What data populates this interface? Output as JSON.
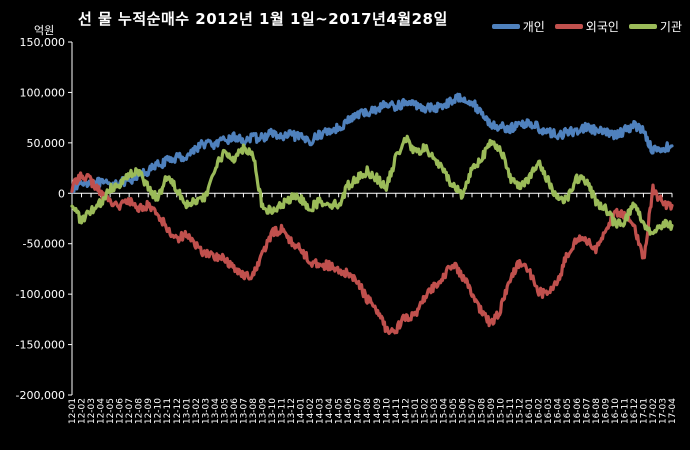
{
  "chart_data": {
    "type": "line",
    "title": "선 물 누적순매수 2012년 1월 1일~2017년4월28일",
    "unit_label": "억원",
    "xlabel": "",
    "ylabel": "",
    "ylim": [
      -200000,
      150000
    ],
    "yticks": [
      150000,
      100000,
      50000,
      0,
      -50000,
      -100000,
      -150000,
      -200000
    ],
    "ytick_labels": [
      "150,000",
      "100,000",
      "50,000",
      "0",
      "-50,000",
      "-100,000",
      "-150,000",
      "-200,000"
    ],
    "legend_position": "top-right",
    "grid": false,
    "colors": {
      "개인": "#4f81bd",
      "외국인": "#c0504d",
      "기관": "#9bbb59",
      "background": "#000000"
    },
    "x": [
      "12-01",
      "12-02",
      "12-03",
      "12-04",
      "12-05",
      "12-06",
      "12-07",
      "12-08",
      "12-09",
      "12-10",
      "12-11",
      "12-12",
      "13-01",
      "13-02",
      "13-03",
      "13-04",
      "13-05",
      "13-06",
      "13-07",
      "13-08",
      "13-09",
      "13-10",
      "13-11",
      "13-12",
      "14-01",
      "14-02",
      "14-03",
      "14-04",
      "14-05",
      "14-06",
      "14-07",
      "14-08",
      "14-09",
      "14-10",
      "14-11",
      "14-12",
      "15-01",
      "15-02",
      "15-03",
      "15-04",
      "15-05",
      "15-06",
      "15-07",
      "15-08",
      "15-09",
      "15-10",
      "15-11",
      "15-12",
      "16-01",
      "16-02",
      "16-03",
      "16-04",
      "16-05",
      "16-06",
      "16-07",
      "16-08",
      "16-09",
      "16-10",
      "16-11",
      "16-12",
      "17-01",
      "17-02",
      "17-03",
      "17-04"
    ],
    "series": [
      {
        "name": "개인",
        "values": [
          5000,
          10000,
          12000,
          10000,
          8000,
          12000,
          10000,
          18000,
          22000,
          28000,
          32000,
          36000,
          36000,
          45000,
          50000,
          48000,
          52000,
          56000,
          52000,
          55000,
          55000,
          60000,
          55000,
          58000,
          55000,
          52000,
          58000,
          62000,
          65000,
          72000,
          78000,
          80000,
          84000,
          88000,
          86000,
          90000,
          88000,
          85000,
          84000,
          88000,
          92000,
          96000,
          90000,
          80000,
          68000,
          66000,
          64000,
          68000,
          70000,
          65000,
          60000,
          58000,
          60000,
          62000,
          66000,
          62000,
          60000,
          58000,
          62000,
          68000,
          62000,
          42000,
          45000,
          47000
        ]
      },
      {
        "name": "외국인",
        "values": [
          5000,
          20000,
          12000,
          0,
          -8000,
          -12000,
          -8000,
          -15000,
          -12000,
          -20000,
          -35000,
          -45000,
          -40000,
          -52000,
          -60000,
          -62000,
          -65000,
          -75000,
          -80000,
          -82000,
          -60000,
          -40000,
          -35000,
          -48000,
          -55000,
          -68000,
          -70000,
          -72000,
          -78000,
          -80000,
          -88000,
          -105000,
          -115000,
          -135000,
          -135000,
          -122000,
          -122000,
          -105000,
          -92000,
          -82000,
          -70000,
          -82000,
          -100000,
          -118000,
          -130000,
          -115000,
          -85000,
          -68000,
          -78000,
          -98000,
          -100000,
          -88000,
          -60000,
          -45000,
          -48000,
          -55000,
          -38000,
          -20000,
          -22000,
          -30000,
          -68000,
          5000,
          -10000,
          -12000
        ]
      },
      {
        "name": "기관",
        "values": [
          -10000,
          -28000,
          -18000,
          -10000,
          5000,
          10000,
          18000,
          22000,
          5000,
          -5000,
          18000,
          5000,
          -10000,
          -8000,
          -5000,
          25000,
          40000,
          35000,
          45000,
          40000,
          -15000,
          -18000,
          -12000,
          -5000,
          -5000,
          -15000,
          -8000,
          -10000,
          -12000,
          8000,
          15000,
          22000,
          15000,
          5000,
          35000,
          55000,
          40000,
          45000,
          35000,
          22000,
          8000,
          -2000,
          25000,
          35000,
          50000,
          45000,
          15000,
          8000,
          15000,
          30000,
          12000,
          -5000,
          -5000,
          15000,
          12000,
          -8000,
          -15000,
          -30000,
          -28000,
          -10000,
          -30000,
          -40000,
          -30000,
          -32000
        ]
      }
    ]
  }
}
